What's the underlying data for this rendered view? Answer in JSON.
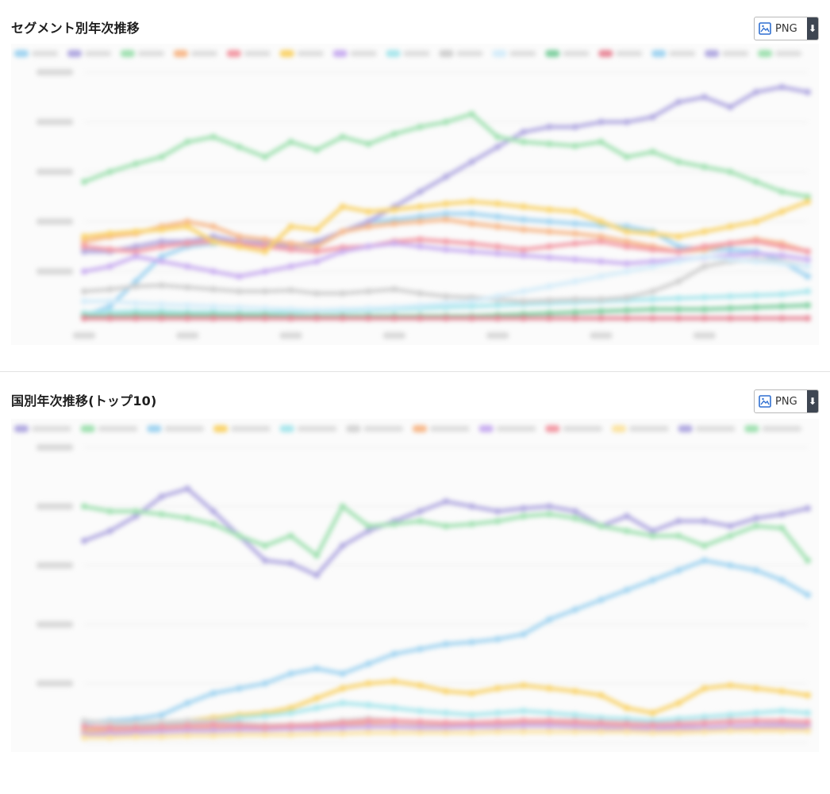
{
  "panels": [
    {
      "title": "セグメント別年次推移",
      "png_label": "PNG",
      "chart_data": {
        "type": "line",
        "y_ticks": [
          "",
          "",
          "",
          "",
          "",
          ""
        ],
        "ylim": [
          0,
          250000
        ],
        "x": [
          0,
          1,
          2,
          3,
          4,
          5,
          6,
          7,
          8,
          9,
          10,
          11,
          12,
          13,
          14,
          15,
          16,
          17,
          18,
          19,
          20,
          21,
          22,
          23,
          24,
          25,
          26,
          27,
          28
        ],
        "x_ticks": [
          0,
          4,
          8,
          12,
          16,
          20,
          24
        ],
        "x_tick_labels": [
          "",
          "",
          "",
          "",
          "",
          "",
          ""
        ],
        "legend_placement": "top",
        "legend_item_count": 15,
        "series": [
          {
            "color": "#9fd3f0",
            "values": [
              5000,
              15000,
              40000,
              65000,
              75000,
              78000,
              80000,
              78000,
              76000,
              75000,
              90000,
              100000,
              102000,
              105000,
              108000,
              108000,
              105000,
              102000,
              100000,
              98000,
              96000,
              95000,
              90000,
              75000,
              72000,
              72000,
              70000,
              60000,
              45000
            ]
          },
          {
            "color": "#b0a8e0",
            "values": [
              70000,
              70000,
              75000,
              80000,
              80000,
              85000,
              80000,
              78000,
              75000,
              80000,
              90000,
              100000,
              115000,
              130000,
              145000,
              160000,
              175000,
              190000,
              195000,
              195000,
              200000,
              200000,
              205000,
              220000,
              225000,
              215000,
              230000,
              235000,
              230000
            ]
          },
          {
            "color": "#9fe0b0",
            "values": [
              140000,
              150000,
              158000,
              165000,
              180000,
              185000,
              175000,
              165000,
              180000,
              172000,
              185000,
              178000,
              188000,
              195000,
              200000,
              208000,
              185000,
              180000,
              178000,
              176000,
              180000,
              165000,
              170000,
              160000,
              155000,
              150000,
              140000,
              130000,
              125000
            ]
          },
          {
            "color": "#f7b88a",
            "values": [
              80000,
              85000,
              88000,
              95000,
              100000,
              95000,
              85000,
              82000,
              78000,
              75000,
              90000,
              95000,
              98000,
              100000,
              102000,
              98000,
              95000,
              92000,
              90000,
              88000,
              85000,
              80000,
              75000,
              70000,
              72000,
              78000,
              82000,
              78000,
              70000
            ]
          },
          {
            "color": "#f29aa5",
            "values": [
              75000,
              72000,
              70000,
              75000,
              78000,
              80000,
              78000,
              75000,
              72000,
              70000,
              74000,
              75000,
              80000,
              82000,
              80000,
              78000,
              75000,
              72000,
              75000,
              78000,
              80000,
              75000,
              72000,
              70000,
              75000,
              78000,
              80000,
              75000,
              70000
            ]
          },
          {
            "color": "#f9d36a",
            "values": [
              85000,
              88000,
              90000,
              92000,
              95000,
              80000,
              75000,
              70000,
              95000,
              92000,
              115000,
              110000,
              112000,
              115000,
              118000,
              120000,
              118000,
              115000,
              112000,
              110000,
              100000,
              90000,
              88000,
              85000,
              90000,
              95000,
              100000,
              110000,
              120000
            ]
          },
          {
            "color": "#c9aef0",
            "values": [
              50000,
              55000,
              65000,
              60000,
              55000,
              50000,
              45000,
              50000,
              55000,
              60000,
              70000,
              75000,
              78000,
              75000,
              72000,
              70000,
              68000,
              66000,
              64000,
              62000,
              60000,
              58000,
              60000,
              62000,
              64000,
              66000,
              68000,
              66000,
              62000
            ]
          },
          {
            "color": "#a8e6ec",
            "values": [
              8000,
              9000,
              10000,
              10000,
              9000,
              9000,
              8000,
              8000,
              9000,
              10000,
              10000,
              11000,
              12000,
              13000,
              14000,
              15000,
              16000,
              17000,
              18000,
              19000,
              20000,
              21000,
              22000,
              23000,
              24000,
              25000,
              26000,
              27000,
              30000
            ]
          },
          {
            "color": "#cfcfcf",
            "values": [
              30000,
              32000,
              35000,
              36000,
              34000,
              32000,
              30000,
              30000,
              31000,
              28000,
              28000,
              30000,
              32000,
              28000,
              25000,
              24000,
              22000,
              20000,
              21000,
              22000,
              22000,
              24000,
              30000,
              40000,
              55000,
              60000,
              62000,
              60000,
              55000
            ]
          },
          {
            "color": "#d4ecf9",
            "values": [
              20000,
              20000,
              18000,
              17000,
              16000,
              15000,
              14000,
              13000,
              12000,
              11000,
              12000,
              13000,
              14000,
              16000,
              18000,
              20000,
              25000,
              30000,
              35000,
              40000,
              45000,
              50000,
              55000,
              60000,
              65000,
              62000,
              60000,
              58000,
              55000
            ]
          },
          {
            "color": "#7fcfa0",
            "values": [
              5000,
              5000,
              6000,
              6000,
              6000,
              6000,
              6000,
              6000,
              5000,
              5000,
              5000,
              5000,
              5000,
              5000,
              5000,
              5000,
              6000,
              7000,
              8000,
              9000,
              10000,
              11000,
              12000,
              12000,
              12000,
              13000,
              14000,
              15000,
              16000
            ]
          },
          {
            "color": "#e88a9a",
            "values": [
              3000,
              3000,
              3000,
              3000,
              3000,
              3000,
              3000,
              3000,
              3000,
              3000,
              3000,
              3000,
              3000,
              3000,
              3000,
              3000,
              3000,
              3000,
              3000,
              3000,
              3000,
              3000,
              3000,
              3000,
              3000,
              3000,
              3000,
              3000,
              3000
            ]
          }
        ]
      }
    },
    {
      "title": "国別年次推移(トップ10)",
      "png_label": "PNG",
      "chart_data": {
        "type": "line",
        "y_ticks": [
          "",
          "",
          "",
          "",
          "",
          ""
        ],
        "ylim": [
          0,
          300000
        ],
        "x": [
          0,
          1,
          2,
          3,
          4,
          5,
          6,
          7,
          8,
          9,
          10,
          11,
          12,
          13,
          14,
          15,
          16,
          17,
          18,
          19,
          20,
          21,
          22,
          23,
          24,
          25,
          26,
          27,
          28
        ],
        "x_ticks": [
          0,
          4,
          8,
          12,
          16,
          20,
          24
        ],
        "x_tick_labels": [
          "",
          "",
          "",
          "",
          "",
          "",
          ""
        ],
        "legend_placement": "top",
        "legend_item_count": 12,
        "series": [
          {
            "color": "#b0a8e0",
            "values": [
              205000,
              215000,
              230000,
              250000,
              258000,
              235000,
              210000,
              185000,
              182000,
              170000,
              200000,
              215000,
              225000,
              235000,
              245000,
              240000,
              235000,
              238000,
              240000,
              235000,
              220000,
              230000,
              215000,
              225000,
              225000,
              220000,
              228000,
              232000,
              238000
            ]
          },
          {
            "color": "#9fe0b0",
            "values": [
              240000,
              235000,
              235000,
              232000,
              228000,
              222000,
              210000,
              200000,
              210000,
              190000,
              240000,
              220000,
              222000,
              225000,
              220000,
              222000,
              225000,
              230000,
              232000,
              228000,
              220000,
              215000,
              210000,
              210000,
              200000,
              210000,
              220000,
              218000,
              185000
            ]
          },
          {
            "color": "#9fd3f0",
            "values": [
              20000,
              22000,
              24000,
              28000,
              40000,
              50000,
              55000,
              60000,
              70000,
              75000,
              70000,
              80000,
              90000,
              95000,
              100000,
              102000,
              105000,
              110000,
              125000,
              135000,
              145000,
              155000,
              165000,
              175000,
              185000,
              180000,
              175000,
              165000,
              150000
            ]
          },
          {
            "color": "#f9d36a",
            "values": [
              12000,
              14000,
              16000,
              18000,
              22000,
              25000,
              28000,
              30000,
              35000,
              45000,
              55000,
              60000,
              62000,
              58000,
              52000,
              50000,
              55000,
              58000,
              55000,
              52000,
              48000,
              35000,
              30000,
              40000,
              55000,
              58000,
              55000,
              52000,
              48000
            ]
          },
          {
            "color": "#a8e6ec",
            "values": [
              15000,
              16000,
              17000,
              18000,
              20000,
              22000,
              25000,
              27000,
              30000,
              35000,
              40000,
              38000,
              35000,
              32000,
              30000,
              28000,
              30000,
              32000,
              30000,
              28000,
              25000,
              24000,
              22000,
              24000,
              26000,
              28000,
              30000,
              32000,
              30000
            ]
          },
          {
            "color": "#d4d4d4",
            "values": [
              22000,
              20000,
              20000,
              21000,
              22000,
              22000,
              20000,
              18000,
              18000,
              19000,
              22000,
              24000,
              22000,
              20000,
              19000,
              18000,
              18000,
              20000,
              22000,
              22000,
              20000,
              18000,
              16000,
              18000,
              20000,
              22000,
              22000,
              20000,
              18000
            ]
          },
          {
            "color": "#f7b88a",
            "values": [
              10000,
              11000,
              12000,
              13000,
              14000,
              14000,
              15000,
              15000,
              16000,
              16000,
              18000,
              18000,
              17000,
              16000,
              16000,
              16000,
              17000,
              18000,
              18000,
              17000,
              16000,
              15000,
              14000,
              14000,
              15000,
              15000,
              16000,
              16000,
              15000
            ]
          },
          {
            "color": "#c9aef0",
            "values": [
              8000,
              9000,
              10000,
              11000,
              12000,
              12000,
              13000,
              13000,
              14000,
              14000,
              15000,
              16000,
              16000,
              15000,
              15000,
              16000,
              16000,
              17000,
              17000,
              16000,
              15000,
              14000,
              14000,
              15000,
              15000,
              16000,
              17000,
              17000,
              16000
            ]
          },
          {
            "color": "#f29aa5",
            "values": [
              16000,
              15000,
              15000,
              16000,
              17000,
              18000,
              17000,
              16000,
              17000,
              18000,
              20000,
              22000,
              22000,
              21000,
              20000,
              20000,
              21000,
              22000,
              22000,
              21000,
              20000,
              19000,
              18000,
              19000,
              20000,
              21000,
              22000,
              22000,
              21000
            ]
          },
          {
            "color": "#fbe3a0",
            "values": [
              5000,
              5000,
              6000,
              6000,
              7000,
              7000,
              8000,
              8000,
              8000,
              9000,
              9000,
              10000,
              10000,
              10000,
              10000,
              10000,
              11000,
              11000,
              11000,
              11000,
              11000,
              11000,
              10000,
              10000,
              11000,
              12000,
              12000,
              12000,
              12000
            ]
          }
        ]
      }
    }
  ]
}
